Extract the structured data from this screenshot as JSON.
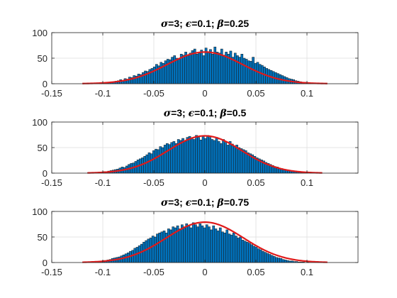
{
  "chart_data": [
    {
      "type": "bar",
      "title": "σ=3; ϵ=0.1; β=0.25",
      "title_parts": {
        "sigma": "σ",
        "sigma_val": "=3; ",
        "eps": "ϵ",
        "eps_val": "=0.1; ",
        "beta": "β",
        "beta_val": "=0.25"
      },
      "xlim": [
        -0.15,
        0.15
      ],
      "ylim": [
        0,
        100
      ],
      "xticks": [
        -0.15,
        -0.1,
        -0.05,
        0,
        0.05,
        0.1
      ],
      "xtick_labels": [
        "-0.15",
        "-0.1",
        "-0.05",
        "0",
        "0.05",
        "0.1"
      ],
      "yticks": [
        0,
        50,
        100
      ],
      "ytick_labels": [
        "0",
        "50",
        "100"
      ],
      "grid": true,
      "bins": {
        "start": -0.11,
        "width": 0.0022
      },
      "values": [
        1,
        1,
        0,
        1,
        2,
        1,
        2,
        3,
        3,
        4,
        5,
        6,
        8,
        6,
        10,
        9,
        13,
        12,
        16,
        15,
        19,
        18,
        22,
        25,
        24,
        28,
        30,
        33,
        38,
        35,
        42,
        40,
        45,
        48,
        47,
        52,
        55,
        50,
        48,
        58,
        56,
        62,
        55,
        60,
        65,
        68,
        58,
        60,
        66,
        55,
        70,
        63,
        67,
        58,
        72,
        62,
        60,
        68,
        56,
        62,
        58,
        64,
        52,
        60,
        55,
        52,
        58,
        50,
        48,
        45,
        44,
        52,
        40,
        42,
        38,
        36,
        33,
        30,
        28,
        26,
        24,
        22,
        20,
        18,
        16,
        14,
        12,
        10,
        9,
        8,
        6,
        5,
        4,
        3,
        3,
        2,
        1,
        1,
        0,
        1,
        0
      ],
      "fit": {
        "type": "gaussian",
        "mean": 0,
        "std": 0.037,
        "peak": 62,
        "xrange": [
          -0.12,
          0.12
        ]
      }
    },
    {
      "type": "bar",
      "title": "σ=3; ϵ=0.1; β=0.5",
      "title_parts": {
        "sigma": "σ",
        "sigma_val": "=3; ",
        "eps": "ϵ",
        "eps_val": "=0.1; ",
        "beta": "β",
        "beta_val": "=0.5"
      },
      "xlim": [
        -0.15,
        0.15
      ],
      "ylim": [
        0,
        100
      ],
      "xticks": [
        -0.15,
        -0.1,
        -0.05,
        0,
        0.05,
        0.1
      ],
      "xtick_labels": [
        "-0.15",
        "-0.1",
        "-0.05",
        "0",
        "0.05",
        "0.1"
      ],
      "yticks": [
        0,
        50,
        100
      ],
      "ytick_labels": [
        "0",
        "50",
        "100"
      ],
      "grid": true,
      "bins": {
        "start": -0.115,
        "width": 0.0022
      },
      "values": [
        1,
        0,
        1,
        1,
        1,
        2,
        2,
        3,
        3,
        4,
        5,
        6,
        7,
        8,
        10,
        12,
        11,
        14,
        17,
        19,
        20,
        23,
        26,
        28,
        30,
        33,
        36,
        40,
        38,
        44,
        47,
        46,
        52,
        50,
        55,
        58,
        56,
        60,
        62,
        58,
        66,
        64,
        68,
        62,
        70,
        72,
        68,
        66,
        74,
        70,
        65,
        72,
        68,
        74,
        70,
        66,
        64,
        70,
        62,
        58,
        66,
        60,
        55,
        62,
        57,
        52,
        55,
        50,
        48,
        46,
        44,
        40,
        38,
        36,
        33,
        30,
        28,
        26,
        24,
        21,
        19,
        17,
        15,
        13,
        12,
        10,
        9,
        8,
        6,
        5,
        4,
        4,
        3,
        2,
        2,
        1,
        1,
        1,
        0,
        1,
        0,
        0
      ],
      "fit": {
        "type": "gaussian",
        "mean": 0,
        "std": 0.036,
        "peak": 73,
        "xrange": [
          -0.115,
          0.115
        ]
      }
    },
    {
      "type": "bar",
      "title": "σ=3; ϵ=0.1; β=0.75",
      "title_parts": {
        "sigma": "σ",
        "sigma_val": "=3; ",
        "eps": "ϵ",
        "eps_val": "=0.1; ",
        "beta": "β",
        "beta_val": "=0.75"
      },
      "xlim": [
        -0.15,
        0.15
      ],
      "ylim": [
        0,
        100
      ],
      "xticks": [
        -0.15,
        -0.1,
        -0.05,
        0,
        0.05,
        0.1
      ],
      "xtick_labels": [
        "-0.15",
        "-0.1",
        "-0.05",
        "0",
        "0.05",
        "0.1"
      ],
      "yticks": [
        0,
        50,
        100
      ],
      "ytick_labels": [
        "0",
        "50",
        "100"
      ],
      "grid": true,
      "bins": {
        "start": -0.118,
        "width": 0.0022
      },
      "values": [
        1,
        0,
        1,
        1,
        2,
        1,
        2,
        3,
        4,
        4,
        5,
        6,
        8,
        9,
        10,
        11,
        13,
        15,
        17,
        19,
        22,
        24,
        28,
        30,
        33,
        36,
        40,
        43,
        46,
        48,
        52,
        50,
        56,
        58,
        60,
        62,
        58,
        66,
        64,
        70,
        68,
        72,
        66,
        74,
        70,
        76,
        72,
        68,
        78,
        74,
        70,
        76,
        72,
        68,
        74,
        70,
        64,
        72,
        66,
        62,
        68,
        60,
        58,
        64,
        56,
        54,
        58,
        52,
        48,
        50,
        44,
        42,
        40,
        38,
        35,
        32,
        30,
        27,
        25,
        22,
        20,
        18,
        16,
        14,
        12,
        10,
        9,
        8,
        6,
        5,
        4,
        3,
        3,
        2,
        2,
        1,
        1,
        1,
        0,
        1,
        0,
        0,
        0
      ],
      "fit": {
        "type": "gaussian",
        "mean": 0,
        "std": 0.038,
        "peak": 79,
        "xrange": [
          -0.12,
          0.12
        ]
      }
    }
  ]
}
